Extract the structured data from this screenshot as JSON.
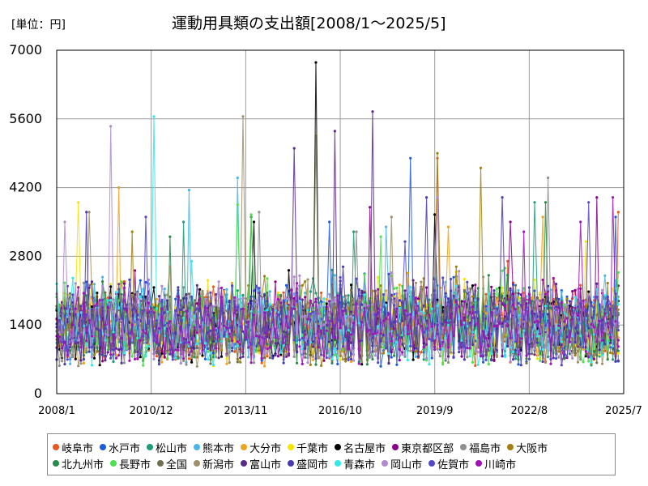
{
  "unit_label": "[単位：円]",
  "title": "運動用具類の支出額[2008/1〜2025/5]",
  "chart_data": {
    "type": "line",
    "x_start": "2008-01",
    "x_end": "2025-05",
    "ylim": [
      0,
      7000
    ],
    "y_ticks": [
      0,
      1400,
      2800,
      4200,
      5600,
      7000
    ],
    "x_ticks": [
      "2008/1",
      "2010/12",
      "2013/11",
      "2016/10",
      "2019/9",
      "2022/8",
      "2025/7"
    ],
    "grid": true,
    "legend_placement": "bottom",
    "series": [
      {
        "name": "岐阜市",
        "color": "#e8581c",
        "peaks": [
          [
            "2019-10",
            4800
          ],
          [
            "2025-05",
            3700
          ],
          [
            "2021-12",
            2700
          ]
        ]
      },
      {
        "name": "水戸市",
        "color": "#1e5be0",
        "peaks": [
          [
            "2018-12",
            4800
          ],
          [
            "2025-04",
            3600
          ],
          [
            "2016-06",
            3500
          ]
        ]
      },
      {
        "name": "松山市",
        "color": "#1b9e77",
        "peaks": [
          [
            "2022-10",
            3900
          ],
          [
            "2011-12",
            3500
          ],
          [
            "2017-03",
            3300
          ]
        ]
      },
      {
        "name": "熊本市",
        "color": "#49b6e8",
        "peaks": [
          [
            "2012-02",
            4150
          ],
          [
            "2013-08",
            4400
          ],
          [
            "2018-03",
            3400
          ]
        ]
      },
      {
        "name": "大分市",
        "color": "#f0a21e",
        "peaks": [
          [
            "2009-12",
            4200
          ],
          [
            "2020-02",
            3400
          ],
          [
            "2023-01",
            3600
          ]
        ]
      },
      {
        "name": "千葉市",
        "color": "#f5e400",
        "peaks": [
          [
            "2008-09",
            3900
          ],
          [
            "2011-03",
            1800
          ],
          [
            "2024-05",
            3100
          ]
        ]
      },
      {
        "name": "名古屋市",
        "color": "#000000",
        "peaks": [
          [
            "2016-01",
            6750
          ],
          [
            "2014-02",
            3500
          ],
          [
            "2019-09",
            3650
          ]
        ]
      },
      {
        "name": "東京都区部",
        "color": "#8b008b",
        "peaks": [
          [
            "2017-09",
            3800
          ],
          [
            "2022-01",
            3500
          ],
          [
            "2024-09",
            4000
          ]
        ]
      },
      {
        "name": "福島市",
        "color": "#8f8f8f",
        "peaks": [
          [
            "2014-04",
            3700
          ],
          [
            "2017-04",
            3300
          ],
          [
            "2023-03",
            4400
          ]
        ]
      },
      {
        "name": "大阪市",
        "color": "#a08010",
        "peaks": [
          [
            "2019-10",
            4900
          ],
          [
            "2010-05",
            3300
          ],
          [
            "2021-02",
            4600
          ]
        ]
      },
      {
        "name": "北九州市",
        "color": "#2a8a4a",
        "peaks": [
          [
            "2014-01",
            3600
          ],
          [
            "2011-07",
            3200
          ],
          [
            "2023-02",
            3900
          ]
        ]
      },
      {
        "name": "長野市",
        "color": "#4ee04e",
        "peaks": [
          [
            "2013-08",
            3850
          ],
          [
            "2014-01",
            3650
          ],
          [
            "2018-01",
            3200
          ]
        ]
      },
      {
        "name": "全国",
        "color": "#6f6f4f",
        "peaks": [
          [
            "2016-01",
            5300
          ],
          [
            "2012-04",
            1900
          ],
          [
            "2020-06",
            2200
          ]
        ]
      },
      {
        "name": "新潟市",
        "color": "#a0906a",
        "peaks": [
          [
            "2013-10",
            5650
          ],
          [
            "2009-01",
            3700
          ],
          [
            "2018-05",
            3600
          ]
        ]
      },
      {
        "name": "富山市",
        "color": "#5a2a8a",
        "peaks": [
          [
            "2015-05",
            5000
          ],
          [
            "2017-10",
            5750
          ],
          [
            "2016-08",
            5350
          ]
        ]
      },
      {
        "name": "盛岡市",
        "color": "#4a3ab0",
        "peaks": [
          [
            "2008-12",
            3700
          ],
          [
            "2019-06",
            4000
          ],
          [
            "2021-10",
            4000
          ]
        ]
      },
      {
        "name": "青森市",
        "color": "#33e8e8",
        "peaks": [
          [
            "2011-01",
            5650
          ],
          [
            "2019-07",
            600
          ],
          [
            "2012-03",
            2700
          ]
        ]
      },
      {
        "name": "岡山市",
        "color": "#b08ad0",
        "peaks": [
          [
            "2009-09",
            5450
          ],
          [
            "2008-04",
            3500
          ],
          [
            "2019-10",
            4000
          ]
        ]
      },
      {
        "name": "佐賀市",
        "color": "#5548c8",
        "peaks": [
          [
            "2010-10",
            3600
          ],
          [
            "2024-06",
            3900
          ],
          [
            "2018-10",
            3100
          ]
        ]
      },
      {
        "name": "川崎市",
        "color": "#a012b8",
        "peaks": [
          [
            "2024-03",
            3500
          ],
          [
            "2025-03",
            4000
          ],
          [
            "2022-06",
            3300
          ]
        ]
      }
    ]
  }
}
